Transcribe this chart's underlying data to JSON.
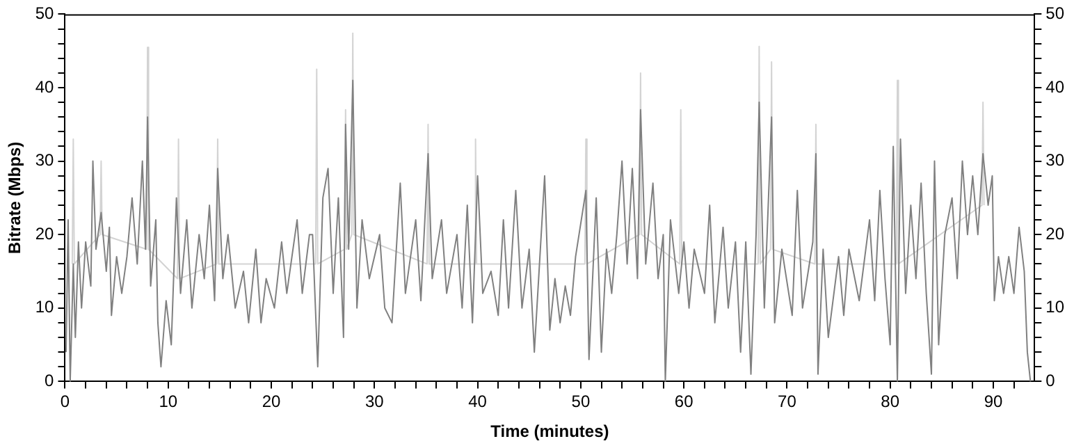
{
  "chart_data": {
    "type": "line",
    "xlabel": "Time (minutes)",
    "ylabel": "Bitrate (Mbps)",
    "xlim": [
      0,
      94
    ],
    "ylim": [
      0,
      50
    ],
    "y2lim": [
      0,
      50
    ],
    "xticks": [
      0,
      {
        "value": 2,
        "label": null
      },
      {
        "value": 4,
        "label": null
      },
      {
        "value": 6,
        "label": null
      },
      {
        "value": 8,
        "label": null
      },
      10,
      {
        "value": 12,
        "label": null
      },
      {
        "value": 14,
        "label": null
      },
      {
        "value": 16,
        "label": null
      },
      {
        "value": 18,
        "label": null
      },
      20,
      {
        "value": 22,
        "label": null
      },
      {
        "value": 24,
        "label": null
      },
      {
        "value": 26,
        "label": null
      },
      {
        "value": 28,
        "label": null
      },
      30,
      {
        "value": 32,
        "label": null
      },
      {
        "value": 34,
        "label": null
      },
      {
        "value": 36,
        "label": null
      },
      {
        "value": 38,
        "label": null
      },
      40,
      {
        "value": 42,
        "label": null
      },
      {
        "value": 44,
        "label": null
      },
      {
        "value": 46,
        "label": null
      },
      {
        "value": 48,
        "label": null
      },
      50,
      {
        "value": 52,
        "label": null
      },
      {
        "value": 54,
        "label": null
      },
      {
        "value": 56,
        "label": null
      },
      {
        "value": 58,
        "label": null
      },
      60,
      {
        "value": 62,
        "label": null
      },
      {
        "value": 64,
        "label": null
      },
      {
        "value": 66,
        "label": null
      },
      {
        "value": 68,
        "label": null
      },
      70,
      {
        "value": 72,
        "label": null
      },
      {
        "value": 74,
        "label": null
      },
      {
        "value": 76,
        "label": null
      },
      {
        "value": 78,
        "label": null
      },
      80,
      {
        "value": 82,
        "label": null
      },
      {
        "value": 84,
        "label": null
      },
      {
        "value": 86,
        "label": null
      },
      {
        "value": 88,
        "label": null
      },
      90,
      {
        "value": 92,
        "label": null
      }
    ],
    "yticks": [
      0,
      {
        "value": 2,
        "label": null
      },
      {
        "value": 4,
        "label": null
      },
      {
        "value": 6,
        "label": null
      },
      {
        "value": 8,
        "label": null
      },
      10,
      {
        "value": 12,
        "label": null
      },
      {
        "value": 14,
        "label": null
      },
      {
        "value": 16,
        "label": null
      },
      {
        "value": 18,
        "label": null
      },
      20,
      {
        "value": 22,
        "label": null
      },
      {
        "value": 24,
        "label": null
      },
      {
        "value": 26,
        "label": null
      },
      {
        "value": 28,
        "label": null
      },
      30,
      {
        "value": 32,
        "label": null
      },
      {
        "value": 34,
        "label": null
      },
      {
        "value": 36,
        "label": null
      },
      {
        "value": 38,
        "label": null
      },
      40,
      {
        "value": 42,
        "label": null
      },
      {
        "value": 44,
        "label": null
      },
      {
        "value": 46,
        "label": null
      },
      {
        "value": 48,
        "label": null
      },
      50
    ],
    "y2ticks": [
      0,
      {
        "value": 2,
        "label": null
      },
      {
        "value": 4,
        "label": null
      },
      {
        "value": 6,
        "label": null
      },
      {
        "value": 8,
        "label": null
      },
      10,
      {
        "value": 12,
        "label": null
      },
      {
        "value": 14,
        "label": null
      },
      {
        "value": 16,
        "label": null
      },
      {
        "value": 18,
        "label": null
      },
      20,
      {
        "value": 22,
        "label": null
      },
      {
        "value": 24,
        "label": null
      },
      {
        "value": 26,
        "label": null
      },
      {
        "value": 28,
        "label": null
      },
      30,
      {
        "value": 32,
        "label": null
      },
      {
        "value": 34,
        "label": null
      },
      {
        "value": 36,
        "label": null
      },
      {
        "value": 38,
        "label": null
      },
      40,
      {
        "value": 42,
        "label": null
      },
      {
        "value": 44,
        "label": null
      },
      {
        "value": 46,
        "label": null
      },
      {
        "value": 48,
        "label": null
      },
      50
    ],
    "grid": false,
    "legend": false,
    "marker": "none",
    "line_style": "solid",
    "series": [
      {
        "color": "#808080",
        "x": [
          0.1,
          0.3,
          0.5,
          0.8,
          1.0,
          1.3,
          1.6,
          2.0,
          2.5,
          2.7,
          3.0,
          3.5,
          4.0,
          4.3,
          4.5,
          5.0,
          5.5,
          6.0,
          6.5,
          7.0,
          7.5,
          7.8,
          8.0,
          8.3,
          8.8,
          9.0,
          9.3,
          9.8,
          10.3,
          10.8,
          11.2,
          11.8,
          12.3,
          13,
          13.5,
          14,
          14.5,
          14.8,
          15.3,
          15.8,
          16.5,
          17.3,
          17.8,
          18.5,
          19,
          19.5,
          20.3,
          21,
          21.5,
          22.5,
          23,
          23.7,
          24,
          24.5,
          25,
          25.5,
          26,
          26.5,
          27,
          27.2,
          27.5,
          27.9,
          28.3,
          28.8,
          29.5,
          30.5,
          31,
          31.7,
          32.5,
          33,
          34,
          34.5,
          35.2,
          35.6,
          36.5,
          37,
          38,
          38.5,
          39,
          39.5,
          40,
          40.5,
          41.3,
          42,
          42.5,
          43,
          43.7,
          44.3,
          45,
          45.5,
          46,
          46.5,
          47,
          47.5,
          48,
          48.5,
          49,
          49.5,
          50.5,
          50.8,
          51.5,
          52,
          52.5,
          53,
          53.5,
          54,
          54.5,
          55,
          55.5,
          55.8,
          56.3,
          57,
          57.5,
          58,
          58.2,
          58.7,
          59.5,
          60,
          60.5,
          61,
          62,
          62.5,
          63,
          63.8,
          64.3,
          65,
          65.5,
          66,
          66.5,
          67,
          67.3,
          67.8,
          68.5,
          68.8,
          69.5,
          70.5,
          71,
          71.5,
          72.5,
          72.8,
          73,
          73.5,
          74,
          75,
          75.5,
          76,
          77,
          78,
          78.5,
          79,
          79.5,
          80,
          80.3,
          80.7,
          81,
          81.5,
          82,
          82.5,
          83,
          83.5,
          84,
          84.3,
          84.7,
          85.3,
          86,
          86.5,
          87,
          87.5,
          88,
          88.5,
          89,
          89.5,
          89.9,
          90.1,
          90.5,
          91,
          91.5,
          92,
          92.5,
          93,
          93.3,
          93.6
        ],
        "values": [
          4,
          22,
          0,
          16,
          6,
          19,
          10,
          19,
          13,
          30,
          18,
          23,
          15,
          21,
          9,
          17,
          12,
          17,
          25,
          16,
          30,
          18,
          36,
          13,
          22,
          8,
          2,
          11,
          5,
          25,
          12,
          22,
          10,
          20,
          14,
          24,
          11,
          29,
          14,
          20,
          10,
          15,
          8,
          18,
          8,
          14,
          10,
          19,
          12,
          22,
          12,
          20,
          20,
          2,
          25,
          29,
          12,
          25,
          6,
          35,
          18,
          41,
          10,
          22,
          14,
          20,
          10,
          8,
          27,
          12,
          22,
          11,
          31,
          14,
          22,
          12,
          20,
          10,
          24,
          8,
          28,
          12,
          15,
          9,
          22,
          10,
          26,
          10,
          18,
          4,
          16,
          28,
          7,
          14,
          8,
          13,
          9,
          17,
          26,
          3,
          25,
          4,
          18,
          12,
          20,
          30,
          16,
          29,
          14,
          37,
          16,
          27,
          14,
          20,
          0,
          22,
          12,
          19,
          10,
          18,
          12,
          24,
          8,
          21,
          10,
          19,
          4,
          19,
          1,
          20,
          38,
          10,
          36,
          8,
          18,
          9,
          26,
          10,
          19,
          31,
          1,
          18,
          6,
          17,
          9,
          18,
          11,
          22,
          11,
          26,
          14,
          5,
          32,
          0,
          33,
          12,
          24,
          14,
          27,
          12,
          1,
          30,
          5,
          20,
          25,
          14,
          30,
          20,
          28,
          20,
          31,
          24,
          28,
          11,
          17,
          12,
          17,
          12,
          21,
          15,
          4,
          0
        ]
      },
      {
        "color": "#d3d3d3",
        "x": [
          0.7,
          0.8,
          0.9,
          3.4,
          3.5,
          3.6,
          7.9,
          8.0,
          8.1,
          10.9,
          11.0,
          11.1,
          14.7,
          14.8,
          14.9,
          24.3,
          24.4,
          24.5,
          27.1,
          27.2,
          27.3,
          27.8,
          27.9,
          28.0,
          35.1,
          35.2,
          35.3,
          39.7,
          39.8,
          39.9,
          50.4,
          50.5,
          50.6,
          55.7,
          55.8,
          55.9,
          59.6,
          59.7,
          59.8,
          67.2,
          67.3,
          67.4,
          68.4,
          68.5,
          68.6,
          72.7,
          72.8,
          72.9,
          80.6,
          80.7,
          80.8,
          88.9,
          89.0,
          89.1
        ],
        "values": [
          16,
          33,
          16,
          20,
          30,
          20,
          18,
          45.5,
          18,
          14,
          33,
          14,
          16,
          33,
          16,
          16,
          42.5,
          16,
          18,
          37,
          18,
          20,
          47.4,
          20,
          16,
          35,
          16,
          16,
          33,
          16,
          16,
          33,
          16,
          20,
          42,
          20,
          16,
          37,
          16,
          16,
          45.6,
          16,
          18,
          43.5,
          18,
          16,
          35,
          16,
          16,
          41,
          16,
          24,
          38,
          24
        ]
      }
    ]
  }
}
